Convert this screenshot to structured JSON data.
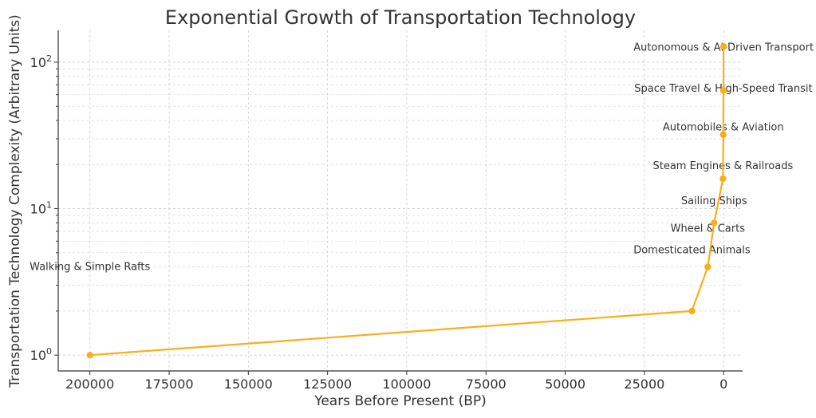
{
  "chart_data": {
    "type": "line",
    "title": "Exponential Growth of Transportation Technology",
    "xlabel": "Years Before Present (BP)",
    "ylabel": "Transportation Technology Complexity (Arbitrary Units)",
    "x_reversed": true,
    "xlim": [
      210000,
      -6000
    ],
    "ylim": [
      0.78,
      165
    ],
    "yscale": "log",
    "grid": true,
    "x_ticks": [
      200000,
      175000,
      150000,
      125000,
      100000,
      75000,
      50000,
      25000,
      0
    ],
    "y_ticks": [
      1,
      10,
      100
    ],
    "y_tick_labels": [
      "10^0",
      "10^1",
      "10^2"
    ],
    "color": "#FBAE17",
    "series": [
      {
        "x": [
          200000,
          10000,
          5000,
          3000,
          200,
          100,
          50,
          10
        ],
        "values": [
          1,
          2,
          4,
          8,
          16,
          32,
          64,
          128
        ]
      }
    ],
    "annotations": [
      {
        "x": 200000,
        "y": 4,
        "text": "Walking & Simple Rafts"
      },
      {
        "x": 10000,
        "y": 5.2,
        "text": "Domesticated Animals"
      },
      {
        "x": 5000,
        "y": 7.3,
        "text": "Wheel & Carts"
      },
      {
        "x": 3000,
        "y": 11.3,
        "text": "Sailing Ships"
      },
      {
        "x": 200,
        "y": 19.6,
        "text": "Steam Engines & Railroads"
      },
      {
        "x": 100,
        "y": 36,
        "text": "Automobiles & Aviation"
      },
      {
        "x": 50,
        "y": 66,
        "text": "Space Travel & High-Speed Transit"
      },
      {
        "x": 10,
        "y": 126,
        "text": "Autonomous & AI-Driven Transport"
      }
    ]
  }
}
